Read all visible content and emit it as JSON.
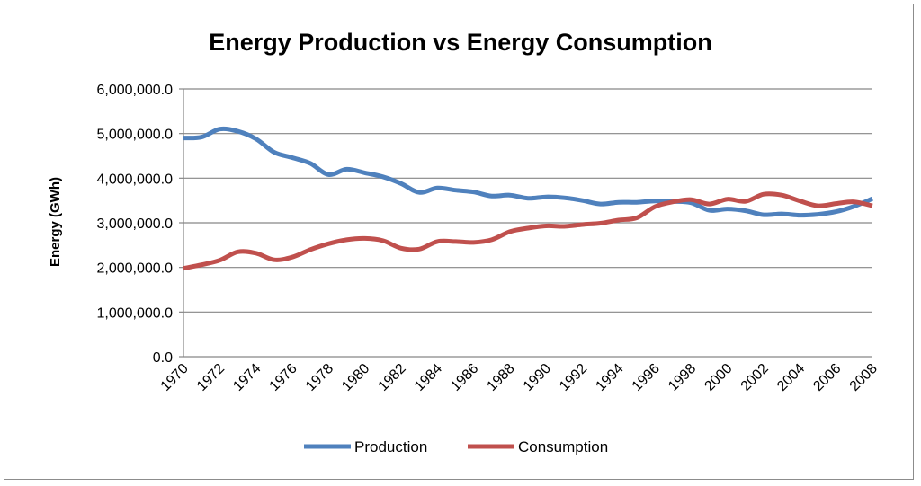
{
  "chart_data": {
    "type": "line",
    "title": "Energy Production vs Energy Consumption",
    "xlabel": "",
    "ylabel": "Energy (GWh)",
    "ylim": [
      0,
      6000000
    ],
    "yticks": [
      0,
      1000000,
      2000000,
      3000000,
      4000000,
      5000000,
      6000000
    ],
    "ytick_labels": [
      "0.0",
      "1,000,000.0",
      "2,000,000.0",
      "3,000,000.0",
      "4,000,000.0",
      "5,000,000.0",
      "6,000,000.0"
    ],
    "x": [
      1970,
      1971,
      1972,
      1973,
      1974,
      1975,
      1976,
      1977,
      1978,
      1979,
      1980,
      1981,
      1982,
      1983,
      1984,
      1985,
      1986,
      1987,
      1988,
      1989,
      1990,
      1991,
      1992,
      1993,
      1994,
      1995,
      1996,
      1997,
      1998,
      1999,
      2000,
      2001,
      2002,
      2003,
      2004,
      2005,
      2006,
      2007,
      2008
    ],
    "xtick_labels": [
      "1970",
      "1972",
      "1974",
      "1976",
      "1978",
      "1980",
      "1982",
      "1984",
      "1986",
      "1988",
      "1990",
      "1992",
      "1994",
      "1996",
      "1998",
      "2000",
      "2002",
      "2004",
      "2006",
      "2008"
    ],
    "grid": true,
    "legend": "bottom",
    "series": [
      {
        "name": "Production",
        "color": "#4f81bd",
        "values": [
          4900000,
          4920000,
          5100000,
          5050000,
          4880000,
          4580000,
          4460000,
          4330000,
          4080000,
          4200000,
          4120000,
          4030000,
          3880000,
          3680000,
          3780000,
          3730000,
          3690000,
          3600000,
          3620000,
          3550000,
          3580000,
          3560000,
          3500000,
          3420000,
          3460000,
          3460000,
          3490000,
          3480000,
          3450000,
          3280000,
          3310000,
          3270000,
          3180000,
          3200000,
          3170000,
          3190000,
          3250000,
          3370000,
          3540000
        ]
      },
      {
        "name": "Consumption",
        "color": "#c0504d",
        "values": [
          1980000,
          2060000,
          2160000,
          2350000,
          2320000,
          2170000,
          2230000,
          2400000,
          2530000,
          2620000,
          2650000,
          2600000,
          2430000,
          2410000,
          2580000,
          2580000,
          2560000,
          2620000,
          2800000,
          2880000,
          2930000,
          2920000,
          2960000,
          2990000,
          3060000,
          3110000,
          3360000,
          3470000,
          3520000,
          3420000,
          3530000,
          3480000,
          3640000,
          3620000,
          3490000,
          3380000,
          3430000,
          3470000,
          3380000
        ]
      }
    ]
  }
}
